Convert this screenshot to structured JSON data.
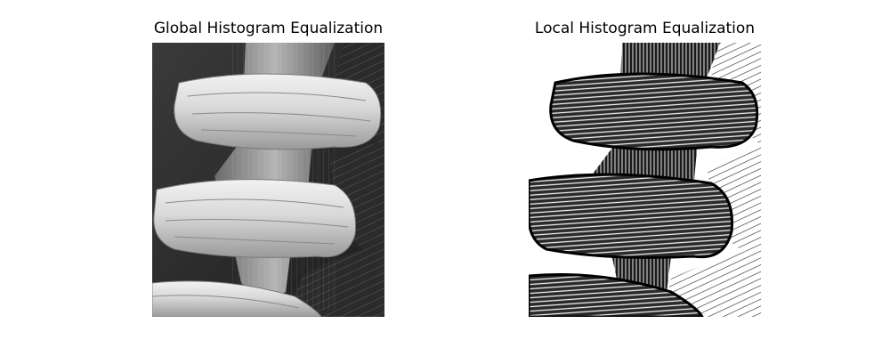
{
  "figure": {
    "left_panel": {
      "title": "Global Histogram Equalization"
    },
    "right_panel": {
      "title": "Local Histogram Equalization"
    }
  }
}
